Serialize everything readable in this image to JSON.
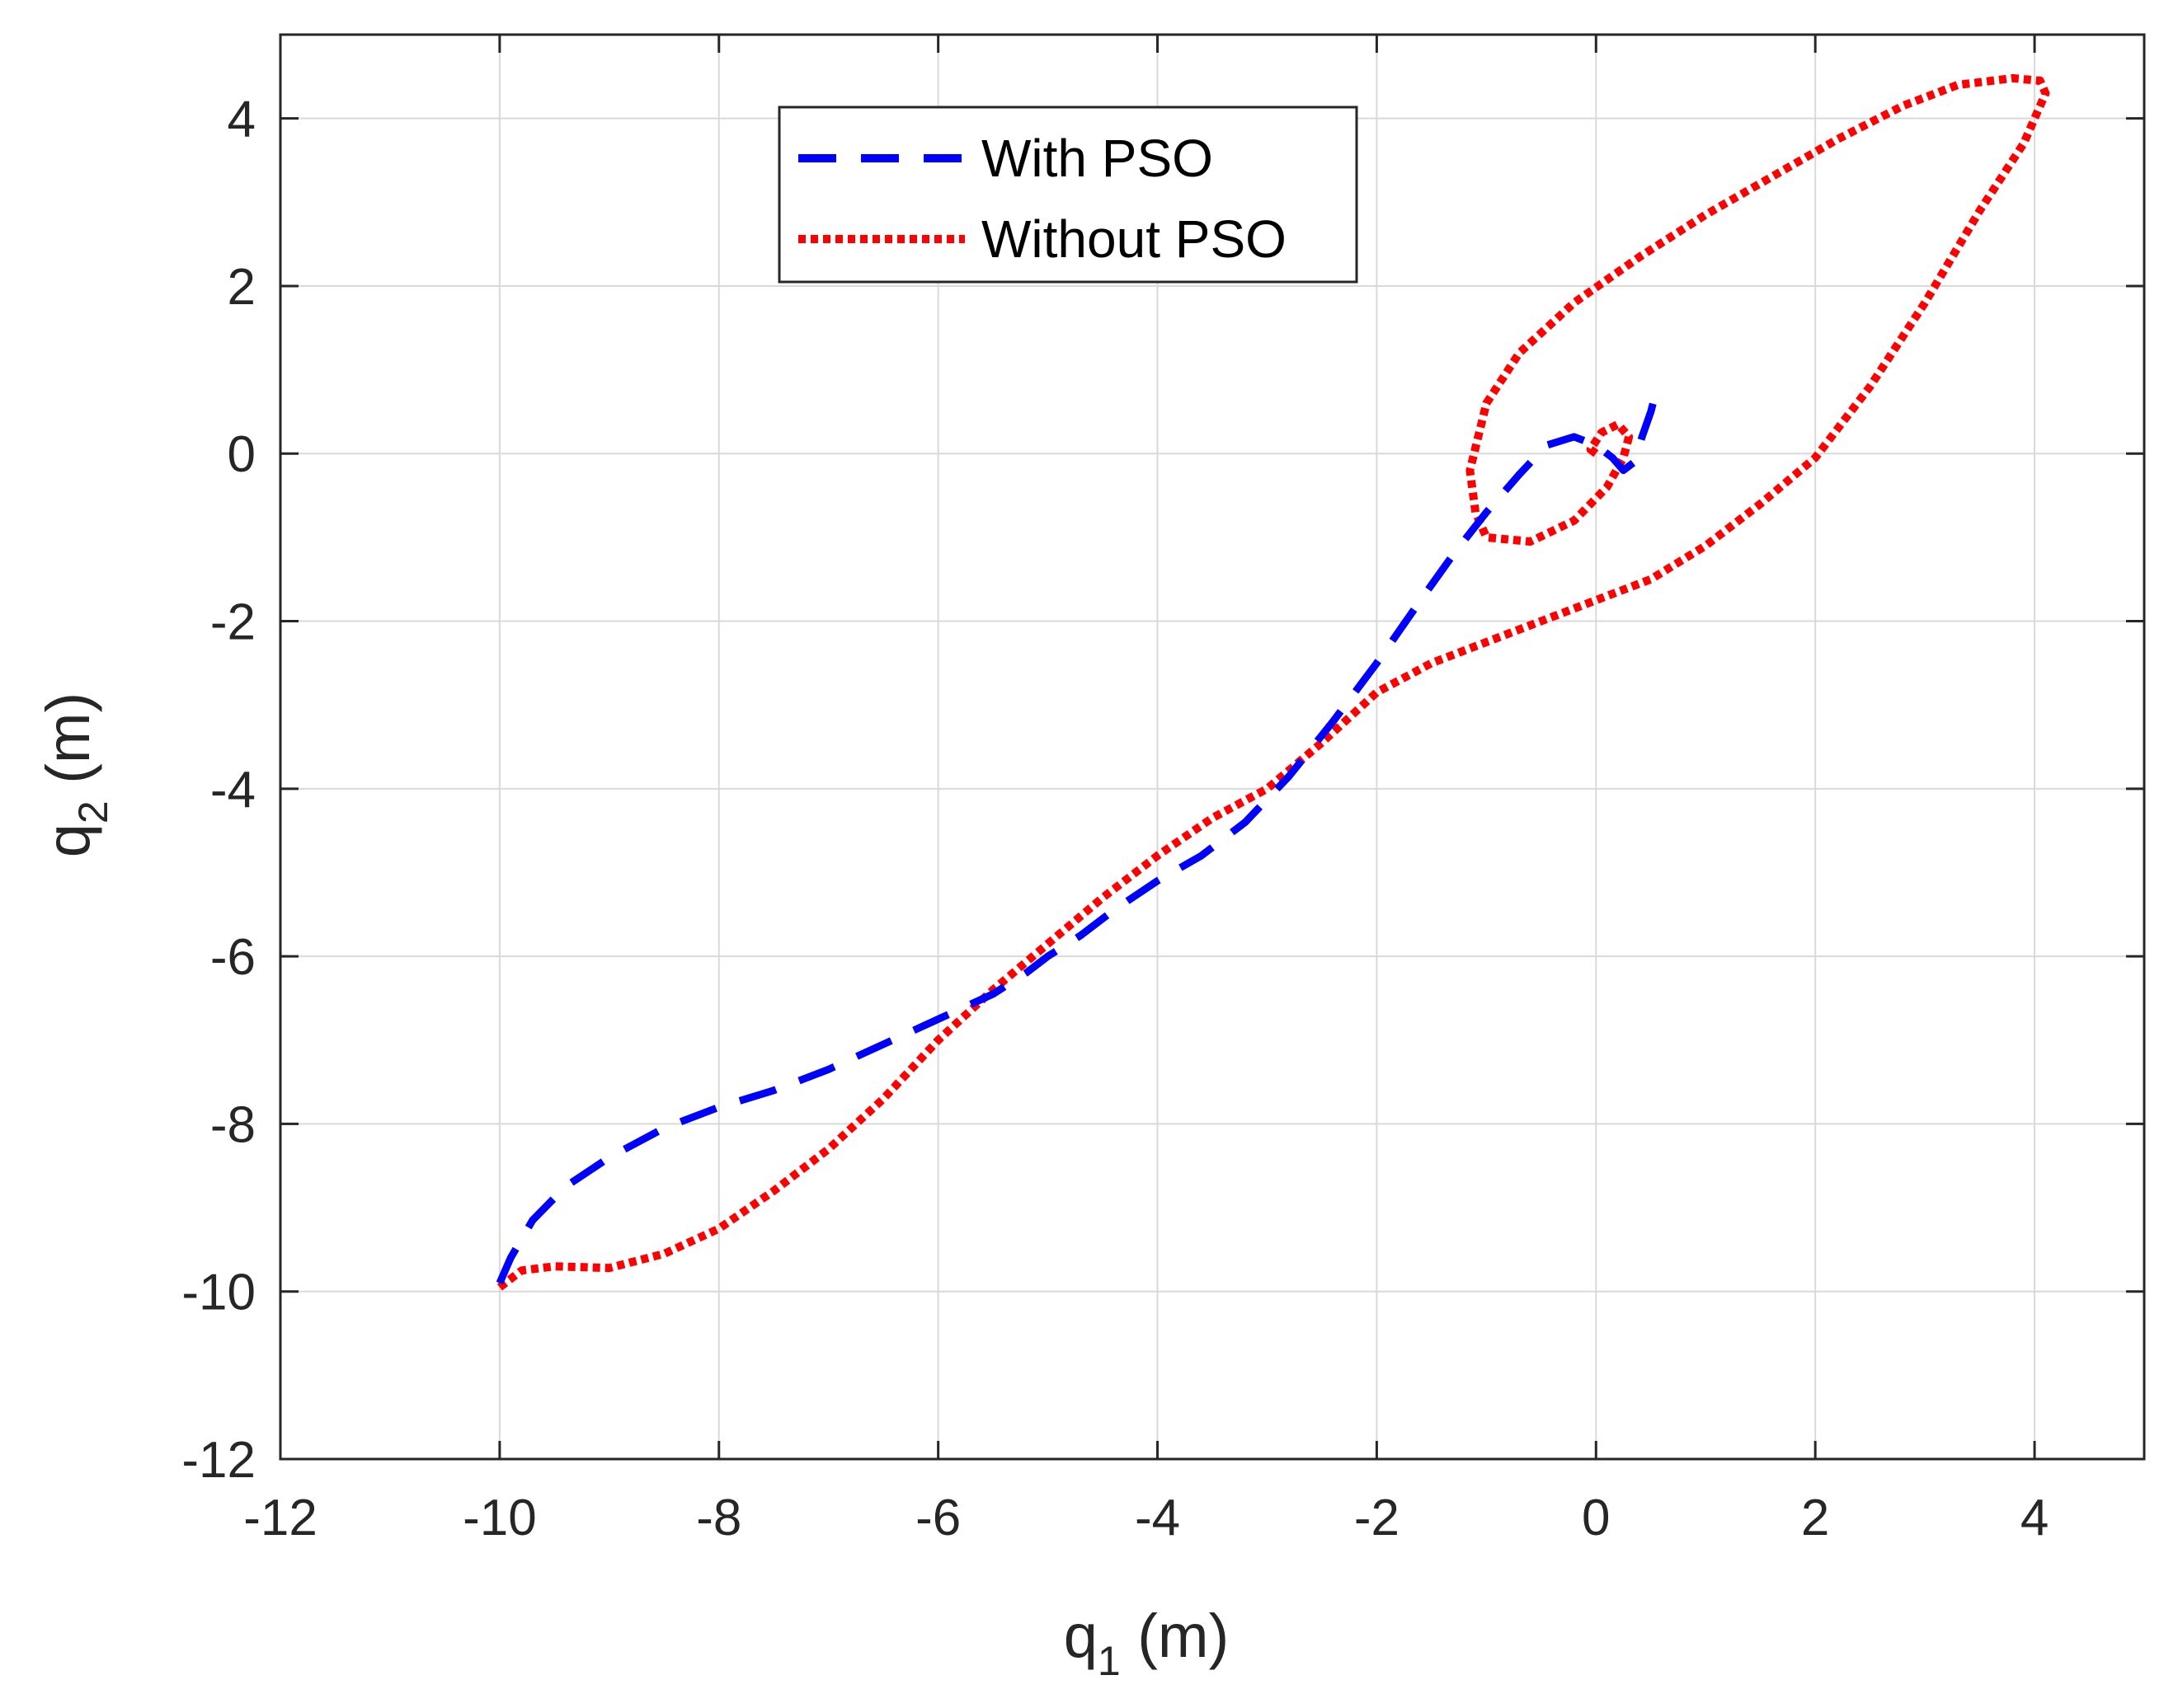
{
  "chart_data": {
    "type": "line",
    "title": "",
    "xlabel": "q1 (m)",
    "ylabel": "q2 (m)",
    "xlabel_parts": {
      "main": "q",
      "sub": "1",
      "unit": " (m)"
    },
    "ylabel_parts": {
      "main": "q",
      "sub": "2",
      "unit": " (m)"
    },
    "xlim": [
      -12,
      5
    ],
    "ylim": [
      -12,
      5
    ],
    "xticks": [
      -12,
      -10,
      -8,
      -6,
      -4,
      -2,
      0,
      2,
      4
    ],
    "yticks": [
      -12,
      -10,
      -8,
      -6,
      -4,
      -2,
      0,
      2,
      4
    ],
    "grid": true,
    "legend_position": "top-center",
    "series": [
      {
        "name": "With PSO",
        "color": "#0000ff",
        "style": "dashed",
        "points": [
          [
            -10.0,
            -9.9
          ],
          [
            -9.9,
            -9.6
          ],
          [
            -9.7,
            -9.15
          ],
          [
            -9.4,
            -8.75
          ],
          [
            -9.0,
            -8.4
          ],
          [
            -8.5,
            -8.05
          ],
          [
            -8.0,
            -7.8
          ],
          [
            -7.5,
            -7.6
          ],
          [
            -7.0,
            -7.35
          ],
          [
            -6.5,
            -7.05
          ],
          [
            -6.0,
            -6.75
          ],
          [
            -5.5,
            -6.45
          ],
          [
            -5.2,
            -6.2
          ],
          [
            -5.0,
            -6.0
          ],
          [
            -4.7,
            -5.75
          ],
          [
            -4.4,
            -5.45
          ],
          [
            -4.0,
            -5.1
          ],
          [
            -3.6,
            -4.8
          ],
          [
            -3.2,
            -4.4
          ],
          [
            -2.8,
            -3.85
          ],
          [
            -2.4,
            -3.2
          ],
          [
            -2.0,
            -2.5
          ],
          [
            -1.6,
            -1.75
          ],
          [
            -1.3,
            -1.2
          ],
          [
            -1.0,
            -0.7
          ],
          [
            -0.7,
            -0.25
          ],
          [
            -0.45,
            0.1
          ],
          [
            -0.2,
            0.2
          ],
          [
            0.0,
            0.1
          ],
          [
            0.15,
            -0.05
          ],
          [
            0.25,
            -0.2
          ],
          [
            0.35,
            -0.1
          ],
          [
            0.42,
            0.2
          ],
          [
            0.5,
            0.5
          ],
          [
            0.55,
            0.75
          ],
          [
            0.58,
            0.85
          ]
        ]
      },
      {
        "name": "Without PSO",
        "color": "#ff0000",
        "style": "dotted",
        "points": [
          [
            -10.0,
            -9.95
          ],
          [
            -9.8,
            -9.75
          ],
          [
            -9.5,
            -9.7
          ],
          [
            -9.0,
            -9.72
          ],
          [
            -8.5,
            -9.55
          ],
          [
            -8.0,
            -9.25
          ],
          [
            -7.5,
            -8.8
          ],
          [
            -7.0,
            -8.3
          ],
          [
            -6.5,
            -7.7
          ],
          [
            -6.0,
            -7.0
          ],
          [
            -5.5,
            -6.4
          ],
          [
            -5.0,
            -5.85
          ],
          [
            -4.5,
            -5.3
          ],
          [
            -4.0,
            -4.8
          ],
          [
            -3.5,
            -4.35
          ],
          [
            -3.0,
            -4.0
          ],
          [
            -2.5,
            -3.45
          ],
          [
            -2.0,
            -2.85
          ],
          [
            -1.5,
            -2.5
          ],
          [
            -1.0,
            -2.25
          ],
          [
            -0.5,
            -2.0
          ],
          [
            0.0,
            -1.75
          ],
          [
            0.5,
            -1.5
          ],
          [
            1.0,
            -1.1
          ],
          [
            1.5,
            -0.6
          ],
          [
            2.0,
            -0.05
          ],
          [
            2.5,
            0.8
          ],
          [
            3.0,
            1.8
          ],
          [
            3.5,
            2.9
          ],
          [
            3.9,
            3.7
          ],
          [
            4.1,
            4.3
          ],
          [
            4.05,
            4.45
          ],
          [
            3.8,
            4.48
          ],
          [
            3.3,
            4.4
          ],
          [
            2.8,
            4.15
          ],
          [
            2.2,
            3.75
          ],
          [
            1.6,
            3.3
          ],
          [
            1.0,
            2.85
          ],
          [
            0.4,
            2.35
          ],
          [
            -0.2,
            1.8
          ],
          [
            -0.7,
            1.2
          ],
          [
            -1.0,
            0.6
          ],
          [
            -1.15,
            -0.2
          ],
          [
            -1.1,
            -0.7
          ],
          [
            -1.0,
            -1.0
          ],
          [
            -0.6,
            -1.05
          ],
          [
            -0.2,
            -0.8
          ],
          [
            0.1,
            -0.4
          ],
          [
            0.25,
            -0.05
          ],
          [
            0.3,
            0.2
          ],
          [
            0.2,
            0.35
          ],
          [
            0.05,
            0.25
          ],
          [
            -0.05,
            0.05
          ],
          [
            0.0,
            0.0
          ]
        ]
      }
    ]
  }
}
